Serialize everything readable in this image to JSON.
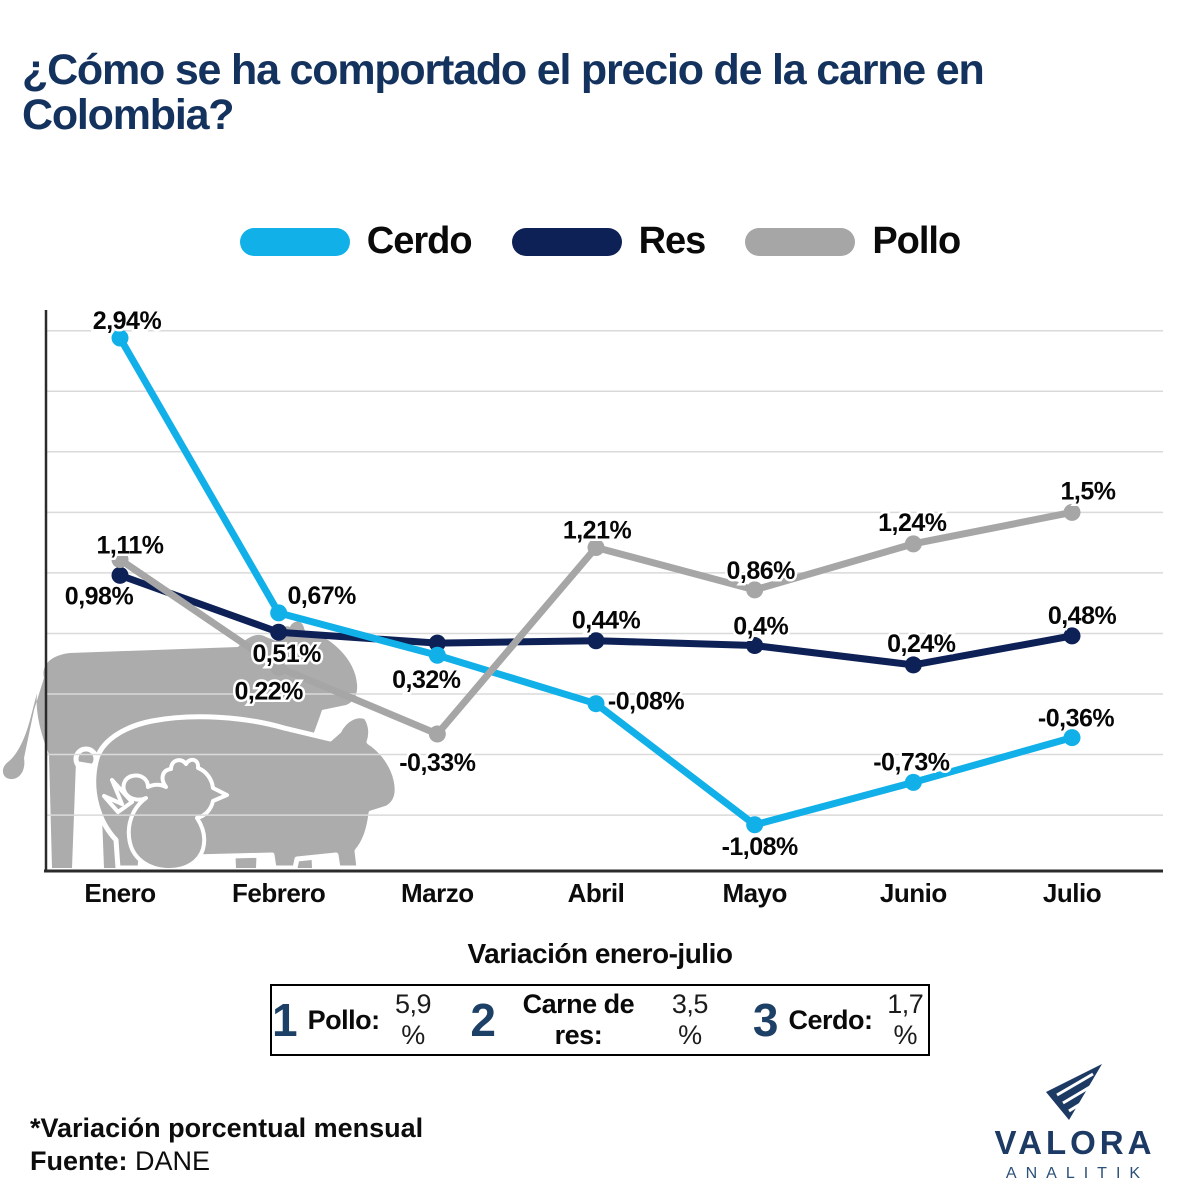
{
  "header": {
    "title": "¿Cómo se ha comportado el precio de la carne en Colombia?"
  },
  "legend": {
    "items": [
      {
        "label": "Cerdo",
        "color": "#11B0E8"
      },
      {
        "label": "Res",
        "color": "#0E2157"
      },
      {
        "label": "Pollo",
        "color": "#A6A6A6"
      }
    ]
  },
  "chart_data": {
    "type": "line",
    "title": "Variación porcentual mensual del precio de la carne en Colombia",
    "categories": [
      "Enero",
      "Febrero",
      "Marzo",
      "Abril",
      "Mayo",
      "Junio",
      "Julio"
    ],
    "series": [
      {
        "name": "Cerdo",
        "color": "#11B0E8",
        "values": [
          2.94,
          0.67,
          0.32,
          -0.08,
          -1.08,
          -0.73,
          -0.36
        ],
        "labels": [
          "2,94%",
          "0,67%",
          "0,32%",
          "-0,08%",
          "-1,08%",
          "-0,73%",
          "-0,36%"
        ]
      },
      {
        "name": "Res",
        "color": "#0E2157",
        "values": [
          0.98,
          0.51,
          0.42,
          0.44,
          0.4,
          0.24,
          0.48
        ],
        "labels": [
          "0,98%",
          "0,51%",
          null,
          "0,44%",
          "0,4%",
          "0,24%",
          "0,48%"
        ]
      },
      {
        "name": "Pollo",
        "color": "#A6A6A6",
        "values": [
          1.11,
          0.22,
          -0.33,
          1.21,
          0.86,
          1.24,
          1.5
        ],
        "labels": [
          "1,11%",
          "0,22%",
          "-0,33%",
          "1,21%",
          "0,86%",
          "1,24%",
          "1,5%"
        ]
      }
    ],
    "ylim": [
      -1.5,
      3.0
    ],
    "grid": true,
    "grid_step": 0.5,
    "legend_position": "top",
    "xlabel": "",
    "ylabel": ""
  },
  "summary": {
    "title": "Variación enero-julio",
    "items": [
      {
        "rank": "1",
        "label": "Pollo:",
        "value": "5,9 %"
      },
      {
        "rank": "2",
        "label": "Carne de res:",
        "value": "3,5 %"
      },
      {
        "rank": "3",
        "label": "Cerdo:",
        "value": "1,7 %"
      }
    ]
  },
  "footer": {
    "note": "*Variación porcentual mensual",
    "source_label": "Fuente:",
    "source": "DANE"
  },
  "brand": {
    "name": "VALORA",
    "sub": "ANALITIK"
  },
  "icons": {
    "watermark": [
      "cow-icon",
      "pig-icon",
      "chicken-icon"
    ],
    "brand": "valora-paper-plane-icon"
  },
  "colors": {
    "title": "#14325E",
    "grid": "#DADADA",
    "axis": "#2B2B2B",
    "data_label": "#070707",
    "month_label": "#0C0C0C",
    "watermark_gray": "#ACACAC",
    "rank_navy": "#1D4066",
    "brand_navy": "#1C3A63"
  }
}
